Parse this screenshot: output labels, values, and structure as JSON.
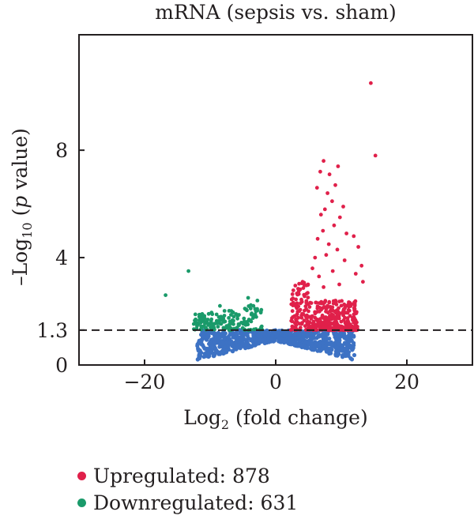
{
  "chart_data": {
    "type": "scatter",
    "title": "mRNA (sepsis vs. sham)",
    "xlabel": {
      "prefix": "Log",
      "sub": "2",
      "suffix": " (fold change)"
    },
    "ylabel": {
      "prefix": "–Log",
      "sub": "10",
      "mid": " (",
      "italic": "p",
      "suffix": " value)"
    },
    "xlim": [
      -30,
      30
    ],
    "ylim": [
      -0.0,
      12.3
    ],
    "x_ticks": [
      -20,
      0,
      20
    ],
    "x_tick_labels": [
      "−20",
      "0",
      "20"
    ],
    "y_ticks": [
      0,
      1.3,
      4,
      8
    ],
    "y_tick_labels": [
      "0",
      "1.3",
      "4",
      "8"
    ],
    "threshold_line": {
      "y": 1.3,
      "style": "dashed"
    },
    "grid": false,
    "colors": {
      "up": "#e0204a",
      "down": "#1a9a6a",
      "ns": "#3d72c4",
      "axis": "#231f20"
    },
    "series": [
      {
        "name": "Upregulated: 878",
        "color": "#e0204a",
        "points": [
          [
            14.5,
            10.5
          ],
          [
            15.2,
            7.8
          ],
          [
            7.3,
            7.6
          ],
          [
            9.5,
            7.4
          ],
          [
            6.8,
            7.2
          ],
          [
            8.2,
            7.1
          ],
          [
            9.1,
            6.7
          ],
          [
            7.9,
            6.4
          ],
          [
            6.3,
            6.6
          ],
          [
            8.6,
            6.1
          ],
          [
            10.3,
            5.9
          ],
          [
            7.5,
            5.8
          ],
          [
            6.9,
            5.6
          ],
          [
            9.8,
            5.5
          ],
          [
            8.9,
            5.2
          ],
          [
            7.2,
            5.0
          ],
          [
            10.8,
            4.9
          ],
          [
            11.9,
            4.8
          ],
          [
            6.4,
            4.7
          ],
          [
            8.1,
            4.5
          ],
          [
            12.6,
            4.4
          ],
          [
            9.4,
            4.3
          ],
          [
            7.7,
            4.1
          ],
          [
            6.0,
            4.0
          ],
          [
            10.5,
            3.9
          ],
          [
            13.1,
            3.7
          ],
          [
            5.6,
            3.6
          ],
          [
            8.7,
            3.5
          ],
          [
            12.2,
            3.4
          ],
          [
            6.6,
            3.3
          ],
          [
            4.1,
            3.1
          ],
          [
            9.7,
            3.0
          ],
          [
            13.3,
            3.1
          ],
          [
            7.3,
            2.9
          ]
        ],
        "cluster": {
          "x": [
            2.3,
            12.5
          ],
          "y": [
            1.3,
            3.0
          ],
          "n": 400
        }
      },
      {
        "name": "Downregulated: 631",
        "color": "#1a9a6a",
        "points": [
          [
            -13.3,
            3.5
          ],
          [
            -16.8,
            2.6
          ],
          [
            -4.2,
            2.5
          ],
          [
            -2.8,
            2.4
          ],
          [
            -8.5,
            2.2
          ],
          [
            -11.2,
            1.9
          ],
          [
            -6.4,
            1.8
          ],
          [
            -9.8,
            1.7
          ],
          [
            -4.7,
            2.1
          ],
          [
            -3.4,
            2.2
          ]
        ],
        "cluster": {
          "x": [
            -12.5,
            -2.0
          ],
          "y": [
            1.3,
            2.2
          ],
          "n": 150
        }
      },
      {
        "name": "",
        "color": "#3d72c4",
        "cluster": {
          "x": [
            -12,
            12
          ],
          "y": [
            0.35,
            1.3
          ],
          "n": 900
        }
      }
    ]
  }
}
